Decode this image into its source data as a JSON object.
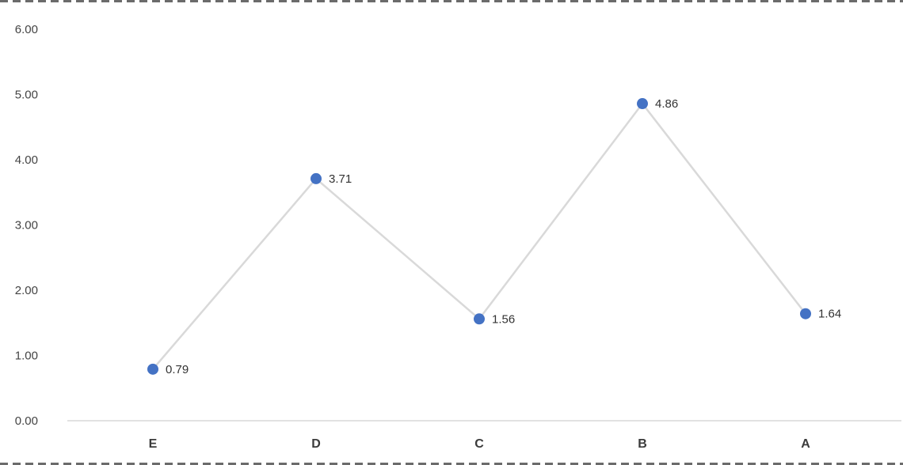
{
  "chart_data": {
    "type": "line",
    "categories": [
      "E",
      "D",
      "C",
      "B",
      "A"
    ],
    "values": [
      0.79,
      3.71,
      1.56,
      4.86,
      1.64
    ],
    "data_labels": [
      "0.79",
      "3.71",
      "1.56",
      "4.86",
      "1.64"
    ],
    "title": "",
    "xlabel": "",
    "ylabel": "",
    "ylim": [
      0,
      6
    ],
    "ytick_step": 1,
    "ytick_labels": [
      "0.00",
      "1.00",
      "2.00",
      "3.00",
      "4.00",
      "5.00",
      "6.00"
    ],
    "grid": false,
    "legend": false,
    "marker_color": "#4472C4",
    "line_color": "#D9D9D9",
    "axis_color": "#D9D9D9",
    "text_color": "#404040"
  }
}
